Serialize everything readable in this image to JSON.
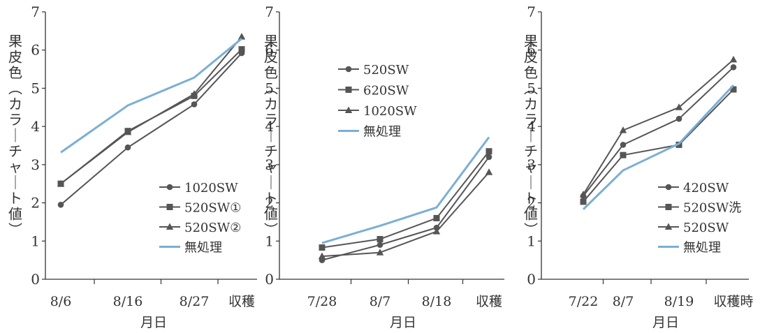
{
  "chart_data": [
    {
      "type": "line",
      "xlabel": "月日",
      "ylabel": "果皮色（カラーチャート値）",
      "ylim": [
        0,
        7
      ],
      "yticks": [
        0,
        1,
        2,
        3,
        4,
        5,
        6,
        7
      ],
      "categories": [
        "8/6",
        "8/16",
        "8/27",
        "収穫"
      ],
      "legend_position": "bottom-right",
      "series": [
        {
          "name": "1020SW",
          "marker": "circle",
          "color": "#555555",
          "values": [
            1.95,
            3.45,
            4.58,
            5.92
          ]
        },
        {
          "name": "520SW①",
          "marker": "square",
          "color": "#555555",
          "values": [
            2.5,
            3.88,
            4.8,
            6.02
          ]
        },
        {
          "name": "520SW②",
          "marker": "triangle",
          "color": "#555555",
          "values": [
            2.5,
            3.85,
            4.85,
            6.35
          ]
        },
        {
          "name": "無処理",
          "marker": "none",
          "color": "#7bafd4",
          "values": [
            3.32,
            4.55,
            5.28,
            6.3
          ]
        }
      ]
    },
    {
      "type": "line",
      "xlabel": "月日",
      "ylabel": "果皮色（カラーチャート値）",
      "ylim": [
        0,
        7
      ],
      "yticks": [
        0,
        1,
        2,
        3,
        4,
        5,
        6,
        7
      ],
      "categories": [
        "7/28",
        "8/7",
        "8/18",
        "収穫"
      ],
      "legend_position": "top-left",
      "series": [
        {
          "name": "520SW",
          "marker": "circle",
          "color": "#555555",
          "values": [
            0.5,
            0.9,
            1.35,
            3.2
          ]
        },
        {
          "name": "620SW",
          "marker": "square",
          "color": "#555555",
          "values": [
            0.83,
            1.05,
            1.6,
            3.35
          ]
        },
        {
          "name": "1020SW",
          "marker": "triangle",
          "color": "#555555",
          "values": [
            0.6,
            0.7,
            1.25,
            2.8
          ]
        },
        {
          "name": "無処理",
          "marker": "none",
          "color": "#7bafd4",
          "values": [
            0.95,
            1.4,
            1.88,
            3.72
          ]
        }
      ]
    },
    {
      "type": "line",
      "xlabel": "月日",
      "ylabel": "果皮色（カラーチャート値）",
      "ylim": [
        0,
        7
      ],
      "yticks": [
        0,
        1,
        2,
        3,
        4,
        5,
        6,
        7
      ],
      "categories": [
        "7/22",
        "8/7",
        "8/19",
        "収穫時"
      ],
      "legend_position": "bottom-right",
      "series": [
        {
          "name": "420SW",
          "marker": "circle",
          "color": "#555555",
          "values": [
            2.18,
            3.52,
            4.2,
            5.55
          ]
        },
        {
          "name": "520SW洗",
          "marker": "square",
          "color": "#555555",
          "values": [
            2.03,
            3.25,
            3.52,
            4.97
          ]
        },
        {
          "name": "520SW",
          "marker": "triangle",
          "color": "#555555",
          "values": [
            2.22,
            3.9,
            4.5,
            5.75
          ]
        },
        {
          "name": "無処理",
          "marker": "none",
          "color": "#7bafd4",
          "values": [
            1.83,
            2.85,
            3.55,
            5.08
          ]
        }
      ]
    }
  ]
}
